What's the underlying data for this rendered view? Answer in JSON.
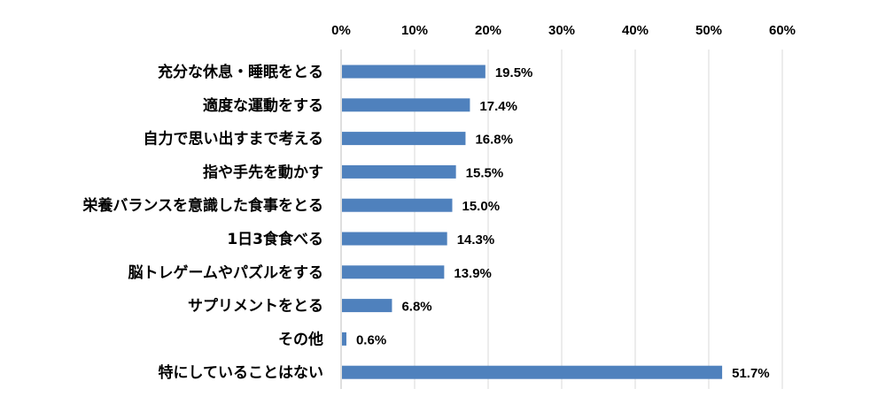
{
  "chart_data": {
    "type": "bar",
    "orientation": "horizontal",
    "title": "",
    "xlabel": "",
    "ylabel": "",
    "xlim": [
      0,
      60
    ],
    "xticks": [
      "0%",
      "10%",
      "20%",
      "30%",
      "40%",
      "50%",
      "60%"
    ],
    "grid": true,
    "categories": [
      "充分な休息・睡眠をとる",
      "適度な運動をする",
      "自力で思い出すまで考える",
      "指や手先を動かす",
      "栄養バランスを意識した食事をとる",
      "1日3食食べる",
      "脳トレゲームやパズルをする",
      "サプリメントをとる",
      "その他",
      "特にしていることはない"
    ],
    "values": [
      19.5,
      17.4,
      16.8,
      15.5,
      15.0,
      14.3,
      13.9,
      6.8,
      0.6,
      51.7
    ],
    "value_labels": [
      "19.5%",
      "17.4%",
      "16.8%",
      "15.5%",
      "15.0%",
      "14.3%",
      "13.9%",
      "6.8%",
      "0.6%",
      "51.7%"
    ],
    "bar_color": "#4F81BD",
    "grid_color": "#D9D9D9"
  }
}
